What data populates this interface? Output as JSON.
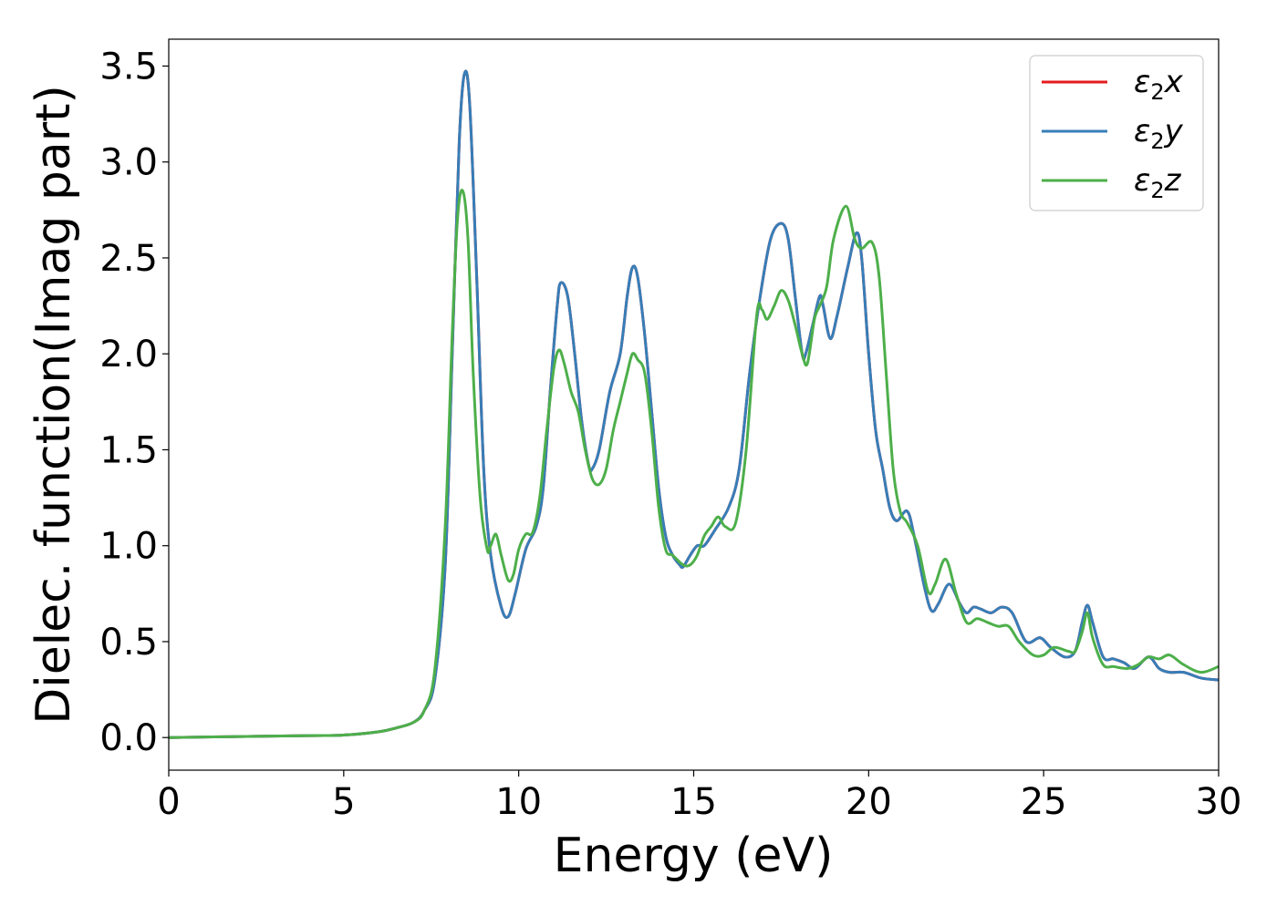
{
  "chart_data": {
    "type": "line",
    "xlabel": "Energy (eV)",
    "ylabel": "Dielec. function(Imag part)",
    "xlim": [
      0,
      30
    ],
    "ylim": [
      -0.17,
      3.64
    ],
    "xticks": [
      0,
      5,
      10,
      15,
      20,
      25,
      30
    ],
    "xtick_labels": [
      "0",
      "5",
      "10",
      "15",
      "20",
      "25",
      "30"
    ],
    "yticks": [
      0.0,
      0.5,
      1.0,
      1.5,
      2.0,
      2.5,
      3.0,
      3.5
    ],
    "ytick_labels": [
      "0.0",
      "0.5",
      "1.0",
      "1.5",
      "2.0",
      "2.5",
      "3.0",
      "3.5"
    ],
    "grid": false,
    "legend_position": "top-right",
    "legend": [
      {
        "base": "ε",
        "sub": "2",
        "suffix": "x",
        "color": "#e41a1c"
      },
      {
        "base": "ε",
        "sub": "2",
        "suffix": "y",
        "color": "#377eb8"
      },
      {
        "base": "ε",
        "sub": "2",
        "suffix": "z",
        "color": "#4daf4a"
      }
    ],
    "series": [
      {
        "name": "ε2x",
        "color": "#e41a1c",
        "points": [
          [
            0,
            0.0
          ],
          [
            2,
            0.005
          ],
          [
            4,
            0.01
          ],
          [
            5,
            0.013
          ],
          [
            6,
            0.03
          ],
          [
            6.5,
            0.05
          ],
          [
            7,
            0.08
          ],
          [
            7.3,
            0.14
          ],
          [
            7.6,
            0.3
          ],
          [
            7.9,
            0.9
          ],
          [
            8.1,
            2.0
          ],
          [
            8.3,
            3.1
          ],
          [
            8.45,
            3.46
          ],
          [
            8.6,
            3.3
          ],
          [
            8.8,
            2.4
          ],
          [
            9.0,
            1.4
          ],
          [
            9.2,
            0.95
          ],
          [
            9.5,
            0.68
          ],
          [
            9.7,
            0.63
          ],
          [
            9.9,
            0.75
          ],
          [
            10.2,
            0.98
          ],
          [
            10.5,
            1.1
          ],
          [
            10.7,
            1.3
          ],
          [
            10.9,
            1.8
          ],
          [
            11.1,
            2.25
          ],
          [
            11.2,
            2.37
          ],
          [
            11.4,
            2.3
          ],
          [
            11.6,
            2.0
          ],
          [
            11.8,
            1.65
          ],
          [
            12.0,
            1.42
          ],
          [
            12.1,
            1.4
          ],
          [
            12.3,
            1.5
          ],
          [
            12.6,
            1.8
          ],
          [
            12.9,
            2.0
          ],
          [
            13.1,
            2.3
          ],
          [
            13.25,
            2.45
          ],
          [
            13.4,
            2.4
          ],
          [
            13.6,
            2.1
          ],
          [
            13.8,
            1.7
          ],
          [
            14.0,
            1.3
          ],
          [
            14.2,
            1.05
          ],
          [
            14.4,
            0.95
          ],
          [
            14.6,
            0.9
          ],
          [
            14.7,
            0.89
          ],
          [
            14.9,
            0.95
          ],
          [
            15.1,
            1.0
          ],
          [
            15.3,
            1.0
          ],
          [
            15.6,
            1.08
          ],
          [
            16.0,
            1.2
          ],
          [
            16.3,
            1.4
          ],
          [
            16.6,
            1.9
          ],
          [
            16.9,
            2.3
          ],
          [
            17.2,
            2.6
          ],
          [
            17.5,
            2.68
          ],
          [
            17.7,
            2.6
          ],
          [
            17.9,
            2.3
          ],
          [
            18.1,
            2.0
          ],
          [
            18.2,
            2.0
          ],
          [
            18.4,
            2.15
          ],
          [
            18.6,
            2.3
          ],
          [
            18.7,
            2.25
          ],
          [
            18.9,
            2.08
          ],
          [
            19.1,
            2.2
          ],
          [
            19.4,
            2.45
          ],
          [
            19.65,
            2.63
          ],
          [
            19.8,
            2.5
          ],
          [
            20.0,
            2.0
          ],
          [
            20.2,
            1.6
          ],
          [
            20.4,
            1.4
          ],
          [
            20.6,
            1.2
          ],
          [
            20.8,
            1.13
          ],
          [
            21.1,
            1.18
          ],
          [
            21.3,
            1.05
          ],
          [
            21.6,
            0.78
          ],
          [
            21.8,
            0.66
          ],
          [
            22.0,
            0.7
          ],
          [
            22.3,
            0.8
          ],
          [
            22.6,
            0.7
          ],
          [
            22.8,
            0.65
          ],
          [
            23.0,
            0.68
          ],
          [
            23.2,
            0.67
          ],
          [
            23.5,
            0.65
          ],
          [
            23.8,
            0.68
          ],
          [
            24.1,
            0.65
          ],
          [
            24.5,
            0.5
          ],
          [
            24.9,
            0.52
          ],
          [
            25.2,
            0.47
          ],
          [
            25.6,
            0.42
          ],
          [
            25.9,
            0.45
          ],
          [
            26.1,
            0.6
          ],
          [
            26.25,
            0.69
          ],
          [
            26.4,
            0.6
          ],
          [
            26.7,
            0.42
          ],
          [
            27.0,
            0.41
          ],
          [
            27.3,
            0.39
          ],
          [
            27.6,
            0.36
          ],
          [
            28.0,
            0.42
          ],
          [
            28.3,
            0.36
          ],
          [
            28.6,
            0.34
          ],
          [
            29.0,
            0.34
          ],
          [
            29.5,
            0.31
          ],
          [
            30.0,
            0.3
          ]
        ]
      },
      {
        "name": "ε2y",
        "color": "#377eb8",
        "points": [
          [
            0,
            0.0
          ],
          [
            2,
            0.005
          ],
          [
            4,
            0.01
          ],
          [
            5,
            0.013
          ],
          [
            6,
            0.03
          ],
          [
            6.5,
            0.05
          ],
          [
            7,
            0.08
          ],
          [
            7.3,
            0.14
          ],
          [
            7.6,
            0.3
          ],
          [
            7.9,
            0.9
          ],
          [
            8.1,
            2.0
          ],
          [
            8.3,
            3.1
          ],
          [
            8.45,
            3.46
          ],
          [
            8.6,
            3.3
          ],
          [
            8.8,
            2.4
          ],
          [
            9.0,
            1.4
          ],
          [
            9.2,
            0.95
          ],
          [
            9.5,
            0.68
          ],
          [
            9.7,
            0.63
          ],
          [
            9.9,
            0.75
          ],
          [
            10.2,
            0.98
          ],
          [
            10.5,
            1.1
          ],
          [
            10.7,
            1.3
          ],
          [
            10.9,
            1.8
          ],
          [
            11.1,
            2.25
          ],
          [
            11.2,
            2.37
          ],
          [
            11.4,
            2.3
          ],
          [
            11.6,
            2.0
          ],
          [
            11.8,
            1.65
          ],
          [
            12.0,
            1.42
          ],
          [
            12.1,
            1.4
          ],
          [
            12.3,
            1.5
          ],
          [
            12.6,
            1.8
          ],
          [
            12.9,
            2.0
          ],
          [
            13.1,
            2.3
          ],
          [
            13.25,
            2.45
          ],
          [
            13.4,
            2.4
          ],
          [
            13.6,
            2.1
          ],
          [
            13.8,
            1.7
          ],
          [
            14.0,
            1.3
          ],
          [
            14.2,
            1.05
          ],
          [
            14.4,
            0.95
          ],
          [
            14.6,
            0.9
          ],
          [
            14.7,
            0.89
          ],
          [
            14.9,
            0.95
          ],
          [
            15.1,
            1.0
          ],
          [
            15.3,
            1.0
          ],
          [
            15.6,
            1.08
          ],
          [
            16.0,
            1.2
          ],
          [
            16.3,
            1.4
          ],
          [
            16.6,
            1.9
          ],
          [
            16.9,
            2.3
          ],
          [
            17.2,
            2.6
          ],
          [
            17.5,
            2.68
          ],
          [
            17.7,
            2.6
          ],
          [
            17.9,
            2.3
          ],
          [
            18.1,
            2.0
          ],
          [
            18.2,
            2.0
          ],
          [
            18.4,
            2.15
          ],
          [
            18.6,
            2.3
          ],
          [
            18.7,
            2.25
          ],
          [
            18.9,
            2.08
          ],
          [
            19.1,
            2.2
          ],
          [
            19.4,
            2.45
          ],
          [
            19.65,
            2.63
          ],
          [
            19.8,
            2.5
          ],
          [
            20.0,
            2.0
          ],
          [
            20.2,
            1.6
          ],
          [
            20.4,
            1.4
          ],
          [
            20.6,
            1.2
          ],
          [
            20.8,
            1.13
          ],
          [
            21.1,
            1.18
          ],
          [
            21.3,
            1.05
          ],
          [
            21.6,
            0.78
          ],
          [
            21.8,
            0.66
          ],
          [
            22.0,
            0.7
          ],
          [
            22.3,
            0.8
          ],
          [
            22.6,
            0.7
          ],
          [
            22.8,
            0.65
          ],
          [
            23.0,
            0.68
          ],
          [
            23.2,
            0.67
          ],
          [
            23.5,
            0.65
          ],
          [
            23.8,
            0.68
          ],
          [
            24.1,
            0.65
          ],
          [
            24.5,
            0.5
          ],
          [
            24.9,
            0.52
          ],
          [
            25.2,
            0.47
          ],
          [
            25.6,
            0.42
          ],
          [
            25.9,
            0.45
          ],
          [
            26.1,
            0.6
          ],
          [
            26.25,
            0.69
          ],
          [
            26.4,
            0.6
          ],
          [
            26.7,
            0.42
          ],
          [
            27.0,
            0.41
          ],
          [
            27.3,
            0.39
          ],
          [
            27.6,
            0.36
          ],
          [
            28.0,
            0.42
          ],
          [
            28.3,
            0.36
          ],
          [
            28.6,
            0.34
          ],
          [
            29.0,
            0.34
          ],
          [
            29.5,
            0.31
          ],
          [
            30.0,
            0.3
          ]
        ]
      },
      {
        "name": "ε2z",
        "color": "#4daf4a",
        "points": [
          [
            0,
            0.0
          ],
          [
            2,
            0.005
          ],
          [
            4,
            0.01
          ],
          [
            5,
            0.013
          ],
          [
            6,
            0.03
          ],
          [
            6.5,
            0.05
          ],
          [
            7,
            0.08
          ],
          [
            7.3,
            0.14
          ],
          [
            7.6,
            0.35
          ],
          [
            7.9,
            1.1
          ],
          [
            8.1,
            2.1
          ],
          [
            8.25,
            2.7
          ],
          [
            8.4,
            2.85
          ],
          [
            8.55,
            2.6
          ],
          [
            8.7,
            1.9
          ],
          [
            8.9,
            1.25
          ],
          [
            9.1,
            0.98
          ],
          [
            9.2,
            1.0
          ],
          [
            9.35,
            1.06
          ],
          [
            9.5,
            0.95
          ],
          [
            9.7,
            0.82
          ],
          [
            9.85,
            0.85
          ],
          [
            10.0,
            0.98
          ],
          [
            10.2,
            1.06
          ],
          [
            10.4,
            1.07
          ],
          [
            10.6,
            1.25
          ],
          [
            10.8,
            1.6
          ],
          [
            11.0,
            1.92
          ],
          [
            11.15,
            2.02
          ],
          [
            11.3,
            1.95
          ],
          [
            11.5,
            1.8
          ],
          [
            11.7,
            1.7
          ],
          [
            11.9,
            1.5
          ],
          [
            12.1,
            1.35
          ],
          [
            12.3,
            1.32
          ],
          [
            12.5,
            1.4
          ],
          [
            12.7,
            1.6
          ],
          [
            12.9,
            1.75
          ],
          [
            13.1,
            1.9
          ],
          [
            13.25,
            2.0
          ],
          [
            13.4,
            1.97
          ],
          [
            13.6,
            1.9
          ],
          [
            13.8,
            1.6
          ],
          [
            14.0,
            1.2
          ],
          [
            14.2,
            0.98
          ],
          [
            14.4,
            0.95
          ],
          [
            14.7,
            0.9
          ],
          [
            14.9,
            0.9
          ],
          [
            15.1,
            0.95
          ],
          [
            15.3,
            1.05
          ],
          [
            15.5,
            1.1
          ],
          [
            15.7,
            1.15
          ],
          [
            15.9,
            1.1
          ],
          [
            16.2,
            1.12
          ],
          [
            16.5,
            1.5
          ],
          [
            16.8,
            2.2
          ],
          [
            16.95,
            2.23
          ],
          [
            17.1,
            2.18
          ],
          [
            17.3,
            2.25
          ],
          [
            17.5,
            2.33
          ],
          [
            17.7,
            2.28
          ],
          [
            17.9,
            2.15
          ],
          [
            18.1,
            2.0
          ],
          [
            18.25,
            1.95
          ],
          [
            18.45,
            2.18
          ],
          [
            18.6,
            2.25
          ],
          [
            18.8,
            2.35
          ],
          [
            19.0,
            2.6
          ],
          [
            19.35,
            2.77
          ],
          [
            19.6,
            2.6
          ],
          [
            19.8,
            2.55
          ],
          [
            20.1,
            2.58
          ],
          [
            20.3,
            2.4
          ],
          [
            20.5,
            1.9
          ],
          [
            20.7,
            1.4
          ],
          [
            20.9,
            1.18
          ],
          [
            21.1,
            1.12
          ],
          [
            21.4,
            1.0
          ],
          [
            21.7,
            0.76
          ],
          [
            21.9,
            0.8
          ],
          [
            22.2,
            0.93
          ],
          [
            22.5,
            0.75
          ],
          [
            22.8,
            0.6
          ],
          [
            23.1,
            0.62
          ],
          [
            23.4,
            0.6
          ],
          [
            23.7,
            0.58
          ],
          [
            24.0,
            0.58
          ],
          [
            24.3,
            0.5
          ],
          [
            24.7,
            0.43
          ],
          [
            25.0,
            0.43
          ],
          [
            25.3,
            0.47
          ],
          [
            25.7,
            0.45
          ],
          [
            25.9,
            0.45
          ],
          [
            26.1,
            0.55
          ],
          [
            26.25,
            0.65
          ],
          [
            26.4,
            0.52
          ],
          [
            26.7,
            0.38
          ],
          [
            27.0,
            0.37
          ],
          [
            27.4,
            0.36
          ],
          [
            27.7,
            0.38
          ],
          [
            28.0,
            0.42
          ],
          [
            28.3,
            0.41
          ],
          [
            28.6,
            0.43
          ],
          [
            29.0,
            0.38
          ],
          [
            29.5,
            0.34
          ],
          [
            30.0,
            0.37
          ]
        ]
      }
    ]
  }
}
